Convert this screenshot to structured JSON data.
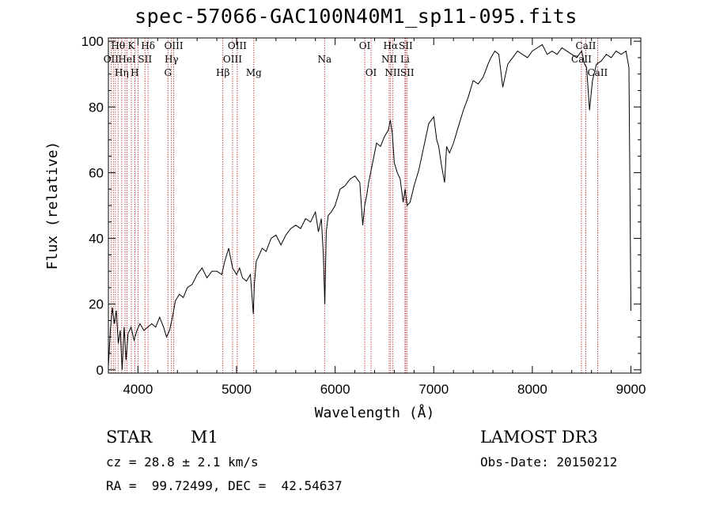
{
  "title": "spec-57066-GAC100N40M1_sp11-095.fits",
  "info": {
    "class": "STAR",
    "subclass": "M1",
    "survey": "LAMOST DR3",
    "cz": "cz = 28.8 ± 2.1 km/s",
    "obs_date": "Obs-Date: 20150212",
    "radec": "RA =  99.72499, DEC =  42.54637"
  },
  "colors": {
    "spectrum": "#000000",
    "lines": "#b22222",
    "axes": "#000000"
  },
  "chart_data": {
    "type": "line",
    "xlabel": "Wavelength (Å)",
    "ylabel": "Flux (relative)",
    "xlim": [
      3700,
      9100
    ],
    "ylim": [
      -1,
      101
    ],
    "xticks": [
      4000,
      5000,
      6000,
      7000,
      8000,
      9000
    ],
    "yticks": [
      0,
      20,
      40,
      60,
      80,
      100
    ],
    "series": [
      {
        "x": [
          3700,
          3720,
          3740,
          3760,
          3780,
          3800,
          3820,
          3840,
          3860,
          3880,
          3900,
          3930,
          3960,
          3990,
          4020,
          4060,
          4100,
          4140,
          4180,
          4220,
          4260,
          4290,
          4320,
          4350,
          4380,
          4420,
          4460,
          4500,
          4550,
          4600,
          4650,
          4700,
          4750,
          4800,
          4850,
          4880,
          4920,
          4960,
          5000,
          5030,
          5060,
          5100,
          5140,
          5170,
          5180,
          5200,
          5230,
          5260,
          5300,
          5350,
          5400,
          5450,
          5500,
          5550,
          5600,
          5650,
          5700,
          5750,
          5800,
          5830,
          5860,
          5880,
          5895,
          5910,
          5930,
          5960,
          6000,
          6050,
          6100,
          6150,
          6200,
          6250,
          6280,
          6300,
          6320,
          6340,
          6380,
          6420,
          6460,
          6500,
          6540,
          6560,
          6580,
          6600,
          6630,
          6660,
          6690,
          6710,
          6730,
          6760,
          6800,
          6850,
          6900,
          6950,
          7000,
          7030,
          7050,
          7080,
          7110,
          7130,
          7160,
          7200,
          7250,
          7300,
          7350,
          7400,
          7450,
          7500,
          7550,
          7580,
          7620,
          7660,
          7700,
          7750,
          7800,
          7850,
          7900,
          7950,
          8000,
          8050,
          8100,
          8150,
          8200,
          8250,
          8300,
          8350,
          8400,
          8450,
          8500,
          8530,
          8550,
          8580,
          8610,
          8650,
          8700,
          8750,
          8800,
          8850,
          8900,
          8950,
          8980,
          9000
        ],
        "y": [
          1,
          12,
          19,
          14,
          18,
          8,
          12,
          0,
          13,
          3,
          11,
          13,
          9,
          12,
          14,
          12,
          13,
          14,
          13,
          16,
          13,
          10,
          12,
          16,
          21,
          23,
          22,
          25,
          26,
          29,
          31,
          28,
          30,
          30,
          29,
          33,
          37,
          31,
          29,
          31,
          28,
          27,
          29,
          17,
          26,
          33,
          35,
          37,
          36,
          40,
          41,
          38,
          41,
          43,
          44,
          43,
          46,
          45,
          48,
          42,
          46,
          35,
          20,
          42,
          47,
          48,
          50,
          55,
          56,
          58,
          59,
          57,
          44,
          50,
          53,
          57,
          63,
          69,
          68,
          71,
          73,
          76,
          72,
          63,
          60,
          58,
          51,
          55,
          50,
          51,
          56,
          61,
          68,
          75,
          77,
          70,
          68,
          62,
          57,
          68,
          66,
          69,
          74,
          79,
          83,
          88,
          87,
          89,
          93,
          95,
          97,
          96,
          86,
          93,
          95,
          97,
          96,
          95,
          97,
          98,
          99,
          96,
          97,
          96,
          98,
          97,
          96,
          95,
          97,
          93,
          92,
          79,
          88,
          93,
          94,
          96,
          95,
          97,
          96,
          97,
          92,
          18
        ]
      }
    ],
    "lines": [
      {
        "w": 3727,
        "label": "OII",
        "row": 2
      },
      {
        "w": 3750,
        "label": "",
        "row": 0
      },
      {
        "w": 3771,
        "label": "",
        "row": 0
      },
      {
        "w": 3798,
        "label": "Hθ",
        "row": 1
      },
      {
        "w": 3835,
        "label": "Hη",
        "row": 3
      },
      {
        "w": 3869,
        "label": "",
        "row": 0
      },
      {
        "w": 3889,
        "label": "HeI",
        "row": 2
      },
      {
        "w": 3933,
        "label": "K",
        "row": 1
      },
      {
        "w": 3968,
        "label": "H",
        "row": 3
      },
      {
        "w": 4000,
        "label": "",
        "row": 0
      },
      {
        "w": 4071,
        "label": "SII",
        "row": 2
      },
      {
        "w": 4102,
        "label": "Hδ",
        "row": 1
      },
      {
        "w": 4304,
        "label": "G",
        "row": 3
      },
      {
        "w": 4340,
        "label": "Hγ",
        "row": 2
      },
      {
        "w": 4363,
        "label": "OIII",
        "row": 1
      },
      {
        "w": 4861,
        "label": "Hβ",
        "row": 3
      },
      {
        "w": 4959,
        "label": "OIII",
        "row": 2
      },
      {
        "w": 5007,
        "label": "OIII",
        "row": 1
      },
      {
        "w": 5175,
        "label": "Mg",
        "row": 3
      },
      {
        "w": 5893,
        "label": "Na",
        "row": 2
      },
      {
        "w": 6300,
        "label": "OI",
        "row": 1
      },
      {
        "w": 6364,
        "label": "OI",
        "row": 3
      },
      {
        "w": 6548,
        "label": "NII",
        "row": 2
      },
      {
        "w": 6563,
        "label": "Hα",
        "row": 1
      },
      {
        "w": 6583,
        "label": "NII",
        "row": 3
      },
      {
        "w": 6708,
        "label": "Li",
        "row": 2
      },
      {
        "w": 6716,
        "label": "SII",
        "row": 1
      },
      {
        "w": 6731,
        "label": "SII",
        "row": 3
      },
      {
        "w": 8498,
        "label": "CaII",
        "row": 2
      },
      {
        "w": 8542,
        "label": "CaII",
        "row": 1
      },
      {
        "w": 8662,
        "label": "CaII",
        "row": 3
      }
    ]
  }
}
